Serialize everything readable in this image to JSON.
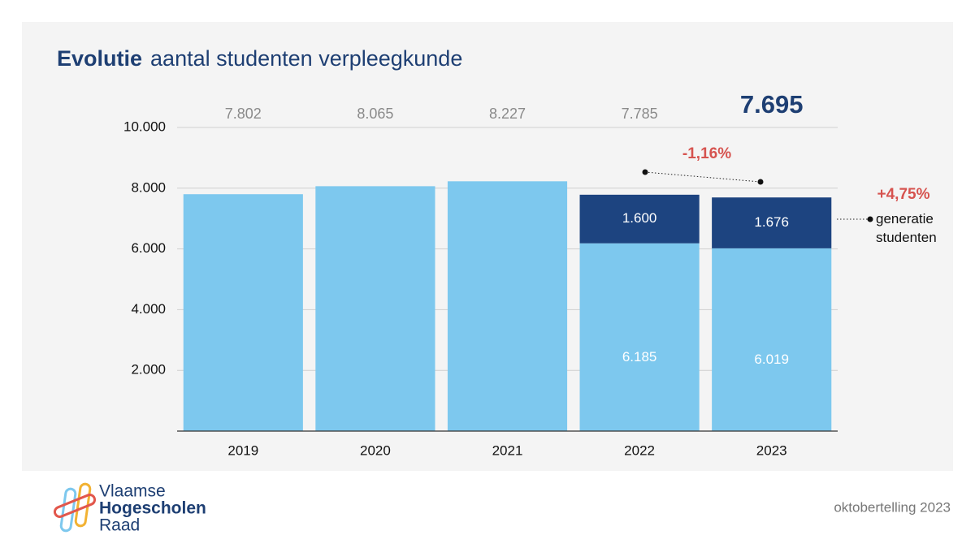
{
  "chart_data": {
    "type": "bar",
    "stacked": true,
    "title_bold": "Evolutie",
    "title": "aantal  studenten verpleegkunde",
    "categories": [
      "2019",
      "2020",
      "2021",
      "2022",
      "2023"
    ],
    "series": [
      {
        "color": "#7dc8ee",
        "values": [
          7802,
          8065,
          8227,
          6185,
          6019
        ],
        "value_labels": [
          null,
          null,
          null,
          "6.185",
          "6.019"
        ]
      },
      {
        "name": "generatie studenten",
        "color": "#1d4480",
        "values": [
          null,
          null,
          null,
          1600,
          1676
        ],
        "value_labels": [
          null,
          null,
          null,
          "1.600",
          "1.676"
        ]
      }
    ],
    "totals": {
      "values": [
        7802,
        8065,
        8227,
        7785,
        7695
      ],
      "value_labels": [
        "7.802",
        "8.065",
        "8.227",
        "7.785",
        "7.695"
      ]
    },
    "ylim": [
      0,
      10000
    ],
    "yticks": [
      {
        "value": 2000,
        "label": "2.000"
      },
      {
        "value": 4000,
        "label": "4.000"
      },
      {
        "value": 6000,
        "label": "6.000"
      },
      {
        "value": 8000,
        "label": "8.000"
      },
      {
        "value": 10000,
        "label": "10.000"
      }
    ],
    "grid": true,
    "annotations": [
      "-1,16%",
      "+4,75%"
    ]
  },
  "footer": {
    "logo": [
      "Vlaamse",
      "Hogescholen",
      "Raad"
    ],
    "note": "oktobertelling 2023"
  }
}
